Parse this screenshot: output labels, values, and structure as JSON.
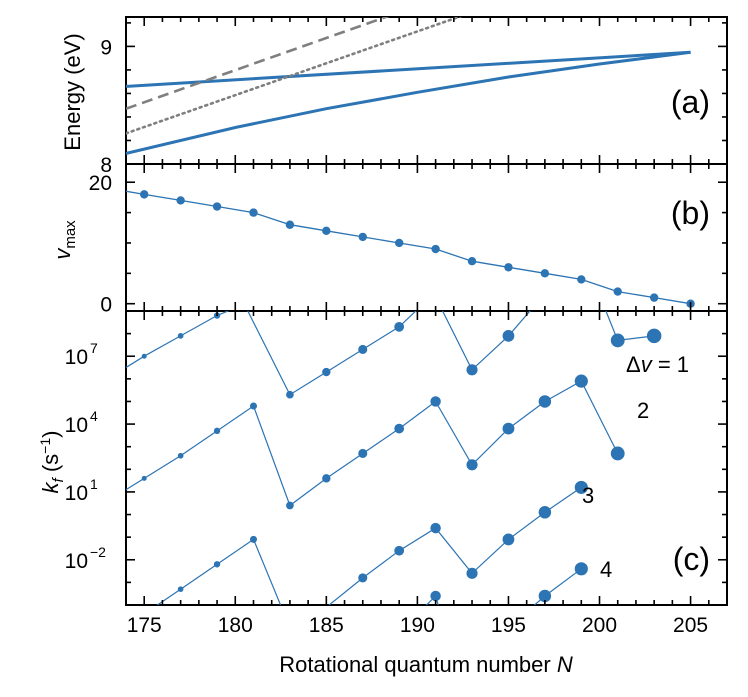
{
  "colors": {
    "blue": "#2c74b3",
    "gray": "#7f7f7f",
    "axis": "#000000"
  },
  "shared_xlabel": "Rotational quantum number N",
  "chart_data": [
    {
      "type": "line",
      "panel": "(a)",
      "ylabel": "Energy (eV)",
      "xlim": [
        174,
        207
      ],
      "ylim": [
        8.0,
        9.25
      ],
      "xticks": [
        175,
        180,
        185,
        190,
        195,
        200,
        205
      ],
      "yticks": [
        8,
        9
      ],
      "series": [
        {
          "name": "upper",
          "style": "solid",
          "color": "#2c74b3",
          "x": [
            174,
            205
          ],
          "y": [
            8.66,
            8.95
          ]
        },
        {
          "name": "lower",
          "style": "solid",
          "color": "#2c74b3",
          "x": [
            174,
            180,
            185,
            190,
            195,
            200,
            205
          ],
          "y": [
            8.09,
            8.31,
            8.47,
            8.61,
            8.74,
            8.85,
            8.95
          ]
        },
        {
          "name": "dashed",
          "style": "dashed",
          "color": "#7f7f7f",
          "x": [
            174,
            189
          ],
          "y": [
            8.47,
            9.29
          ]
        },
        {
          "name": "dotted",
          "style": "dotted",
          "color": "#7f7f7f",
          "x": [
            174,
            193
          ],
          "y": [
            8.26,
            9.29
          ]
        }
      ]
    },
    {
      "type": "line",
      "panel": "(b)",
      "ylabel": "v_max",
      "xlim": [
        174,
        207
      ],
      "ylim": [
        -1.2,
        23
      ],
      "yticks": [
        0,
        20
      ],
      "x": [
        174,
        175,
        177,
        179,
        181,
        183,
        185,
        187,
        189,
        191,
        193,
        195,
        197,
        199,
        201,
        203,
        205
      ],
      "y": [
        18.5,
        18,
        17,
        16,
        15,
        13,
        12,
        11,
        10,
        9,
        7,
        6,
        5,
        4,
        2,
        1,
        0
      ]
    },
    {
      "type": "line",
      "panel": "(c)",
      "ylabel": "k_f (s^-1)",
      "yscale": "log",
      "xlim": [
        174,
        207
      ],
      "ylim_log10": [
        -4,
        9
      ],
      "yticks_log10": [
        -2,
        1,
        4,
        7
      ],
      "ytick_labels": [
        [
          "10",
          "-2"
        ],
        [
          "10",
          "1"
        ],
        [
          "10",
          "4"
        ],
        [
          "10",
          "7"
        ]
      ],
      "series": [
        {
          "name": "Δv = 1",
          "label": "Δv = 1",
          "x": [
            174,
            175,
            177,
            179,
            180.5,
            183,
            185,
            187,
            189,
            190.3,
            191.2,
            193,
            195,
            196.5,
            200.2,
            201,
            203
          ],
          "log10y": [
            6.5,
            7.0,
            7.9,
            8.8,
            9.3,
            5.3,
            6.3,
            7.3,
            8.3,
            9.3,
            9.3,
            6.4,
            7.9,
            9.3,
            9.3,
            7.7,
            7.9
          ]
        },
        {
          "name": "Δv = 2",
          "label": "2",
          "x": [
            174,
            175,
            177,
            179,
            181,
            183,
            185,
            187,
            189,
            191,
            193,
            195,
            197,
            199,
            201
          ],
          "log10y": [
            1.1,
            1.6,
            2.6,
            3.7,
            4.8,
            0.4,
            1.6,
            2.7,
            3.8,
            5.0,
            2.2,
            3.8,
            5.0,
            5.9,
            2.7
          ]
        },
        {
          "name": "Δv = 3",
          "label": "3",
          "x": [
            174,
            175,
            177,
            179,
            181,
            183,
            185,
            187,
            189,
            191,
            193,
            195,
            197,
            199
          ],
          "log10y": [
            -5.0,
            -4.4,
            -3.3,
            -2.2,
            -1.1,
            -5.0,
            -4.1,
            -2.8,
            -1.6,
            -0.6,
            -2.6,
            -1.1,
            0.1,
            1.2
          ]
        },
        {
          "name": "Δv = 4",
          "label": "4",
          "x": [
            181,
            182.5,
            189,
            190.5,
            191,
            191.5,
            195,
            197,
            199
          ],
          "log10y": [
            -5.0,
            -5.0,
            -5.0,
            -4.0,
            -3.6,
            -5.0,
            -5.0,
            -3.6,
            -2.4
          ]
        }
      ],
      "annotations": [
        "Δv = 1",
        "2",
        "3",
        "4"
      ]
    }
  ]
}
